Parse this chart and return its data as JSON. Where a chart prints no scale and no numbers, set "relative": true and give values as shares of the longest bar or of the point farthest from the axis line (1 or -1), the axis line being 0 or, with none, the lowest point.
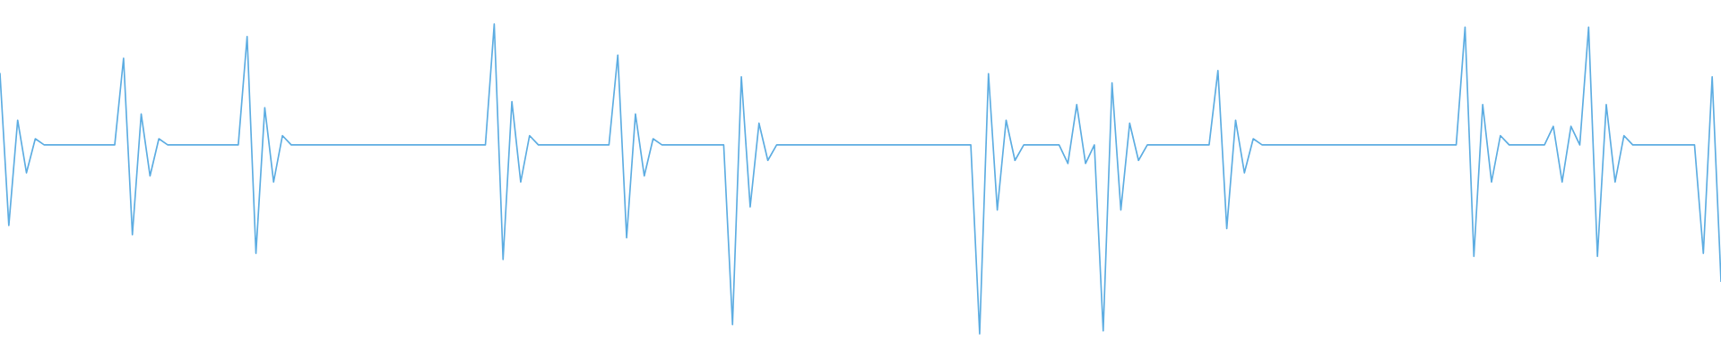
{
  "chart_data": {
    "type": "line",
    "relative": true,
    "color": "#5dade2",
    "categories": [
      null,
      null,
      null,
      null,
      null,
      null,
      null,
      null,
      null,
      null,
      null,
      null,
      null,
      null,
      null,
      null,
      null,
      null,
      null,
      null,
      null,
      null,
      null,
      null,
      null,
      null,
      null,
      null,
      null,
      null,
      null,
      null,
      null,
      null,
      null,
      null,
      null,
      null,
      null,
      null,
      null,
      null,
      null,
      null,
      null,
      null,
      null,
      null,
      null,
      null,
      null,
      null,
      null,
      null,
      null,
      null,
      null,
      null,
      null,
      null,
      null,
      null,
      null,
      null,
      null,
      null,
      null,
      null,
      null,
      null,
      null,
      null,
      null,
      null,
      null,
      null,
      null,
      null,
      null,
      null,
      null,
      null,
      null,
      null,
      null,
      null,
      null,
      null,
      null,
      null,
      null,
      null,
      null,
      null,
      null,
      null,
      null,
      null,
      null,
      null,
      null,
      null,
      null,
      null,
      null,
      null,
      null,
      null,
      null,
      null,
      null,
      null,
      null,
      null,
      null,
      null,
      null,
      null,
      null,
      null,
      null,
      null,
      null,
      null,
      null,
      null,
      null,
      null,
      null,
      null,
      null,
      null,
      null,
      null,
      null,
      null,
      null,
      null,
      null,
      null,
      null,
      null,
      null,
      null,
      null,
      null,
      null,
      null,
      null,
      null,
      null,
      null,
      null,
      null,
      null,
      null,
      null,
      null,
      null,
      null,
      null,
      null,
      null,
      null,
      null,
      null,
      null,
      null,
      null,
      null,
      null,
      null,
      null,
      null,
      null,
      null,
      null,
      null,
      null,
      null,
      null,
      null,
      null,
      null,
      null,
      null,
      null,
      null,
      null,
      null,
      null,
      null,
      null,
      null,
      null,
      null
    ],
    "values": [
      0.84,
      0.35,
      0.69,
      0.52,
      0.63,
      0.61,
      0.61,
      0.61,
      0.61,
      0.61,
      0.61,
      0.61,
      0.61,
      0.61,
      0.89,
      0.32,
      0.71,
      0.51,
      0.63,
      0.61,
      0.61,
      0.61,
      0.61,
      0.61,
      0.61,
      0.61,
      0.61,
      0.61,
      0.96,
      0.26,
      0.73,
      0.49,
      0.64,
      0.61,
      0.61,
      0.61,
      0.61,
      0.61,
      0.61,
      0.61,
      0.61,
      0.61,
      0.61,
      0.61,
      0.61,
      0.61,
      0.61,
      0.61,
      0.61,
      0.61,
      0.61,
      0.61,
      0.61,
      0.61,
      0.61,
      0.61,
      1,
      0.24,
      0.75,
      0.49,
      0.64,
      0.61,
      0.61,
      0.61,
      0.61,
      0.61,
      0.61,
      0.61,
      0.61,
      0.61,
      0.9,
      0.31,
      0.71,
      0.51,
      0.63,
      0.61,
      0.61,
      0.61,
      0.61,
      0.61,
      0.61,
      0.61,
      0.61,
      0.03,
      0.83,
      0.41,
      0.68,
      0.56,
      0.61,
      0.61,
      0.61,
      0.61,
      0.61,
      0.61,
      0.61,
      0.61,
      0.61,
      0.61,
      0.61,
      0.61,
      0.61,
      0.61,
      0.61,
      0.61,
      0.61,
      0.61,
      0.61,
      0.61,
      0.61,
      0.61,
      0.61,
      0,
      0.84,
      0.4,
      0.69,
      0.56,
      0.61,
      0.61,
      0.61,
      0.61,
      0.61,
      0.55,
      0.74,
      0.55,
      0.61,
      0.01,
      0.81,
      0.4,
      0.68,
      0.56,
      0.61,
      0.61,
      0.61,
      0.61,
      0.61,
      0.61,
      0.61,
      0.61,
      0.85,
      0.34,
      0.69,
      0.52,
      0.63,
      0.61,
      0.61,
      0.61,
      0.61,
      0.61,
      0.61,
      0.61,
      0.61,
      0.61,
      0.61,
      0.61,
      0.61,
      0.61,
      0.61,
      0.61,
      0.61,
      0.61,
      0.61,
      0.61,
      0.61,
      0.61,
      0.61,
      0.61,
      0.99,
      0.25,
      0.74,
      0.49,
      0.64,
      0.61,
      0.61,
      0.61,
      0.61,
      0.61,
      0.67,
      0.49,
      0.67,
      0.61,
      0.99,
      0.25,
      0.74,
      0.49,
      0.64,
      0.61,
      0.61,
      0.61,
      0.61,
      0.61,
      0.61,
      0.61,
      0.61,
      0.26,
      0.83,
      0.17
    ]
  }
}
